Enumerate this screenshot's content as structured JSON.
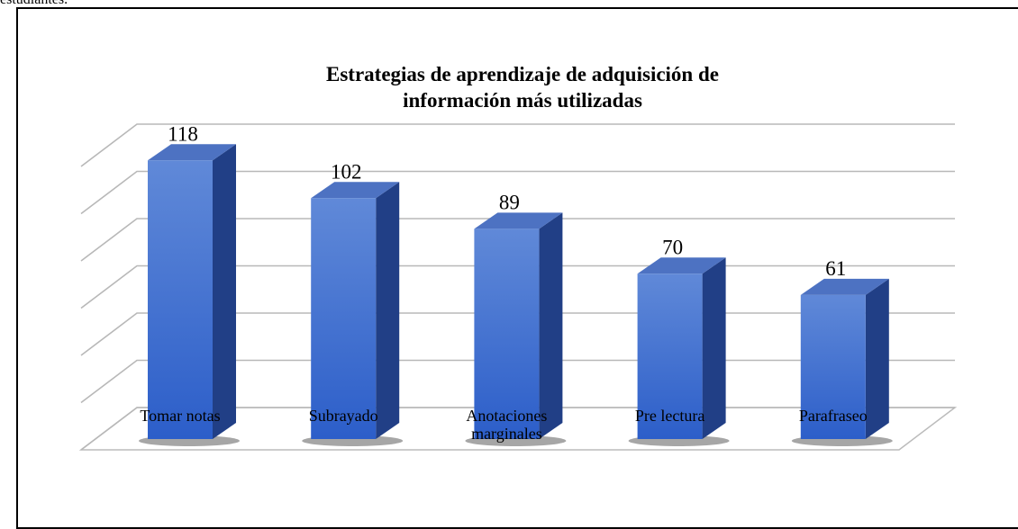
{
  "caption": "estudiantes.",
  "chart_data": {
    "type": "bar3d",
    "title": "Estrategias de aprendizaje de adquisición de información más utilizadas",
    "categories": [
      "Tomar notas",
      "Subrayado",
      "Anotaciones marginales",
      "Pre lectura",
      "Parafraseo"
    ],
    "values": [
      118,
      102,
      89,
      70,
      61
    ],
    "color": "#3f6fd0",
    "ylim": [
      0,
      120
    ],
    "yticks": [
      0,
      20,
      40,
      60,
      80,
      100,
      120
    ],
    "grid": true
  }
}
